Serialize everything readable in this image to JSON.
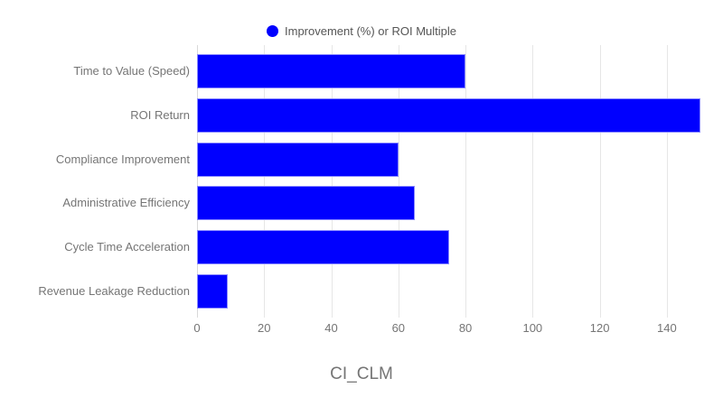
{
  "legend": {
    "label": "Improvement (%) or ROI Multiple",
    "marker_color": "#0000ff"
  },
  "colors": {
    "bar_fill": "#0000ff",
    "bar_border": "#8a8aff",
    "gridline": "#e6e6e6",
    "baseline": "#d9d9d9",
    "axis_label_text": "#757575",
    "legend_text": "#555555",
    "title_text": "#757575",
    "background": "#ffffff"
  },
  "chart_data": {
    "type": "bar",
    "orientation": "horizontal",
    "title": "CI_CLM",
    "series_name": "Improvement (%) or ROI Multiple",
    "categories": [
      "Time to Value (Speed)",
      "ROI Return",
      "Compliance Improvement",
      "Administrative Efficiency",
      "Cycle Time Acceleration",
      "Revenue Leakage Reduction"
    ],
    "values": [
      80,
      150,
      60,
      65,
      75,
      9.2
    ],
    "xlabel": "",
    "ylabel": "",
    "xlim": [
      0,
      150
    ],
    "xticks": [
      0,
      20,
      40,
      60,
      80,
      100,
      120,
      140
    ],
    "grid": true,
    "legend_position": "top",
    "bar_color": "#0000ff"
  }
}
